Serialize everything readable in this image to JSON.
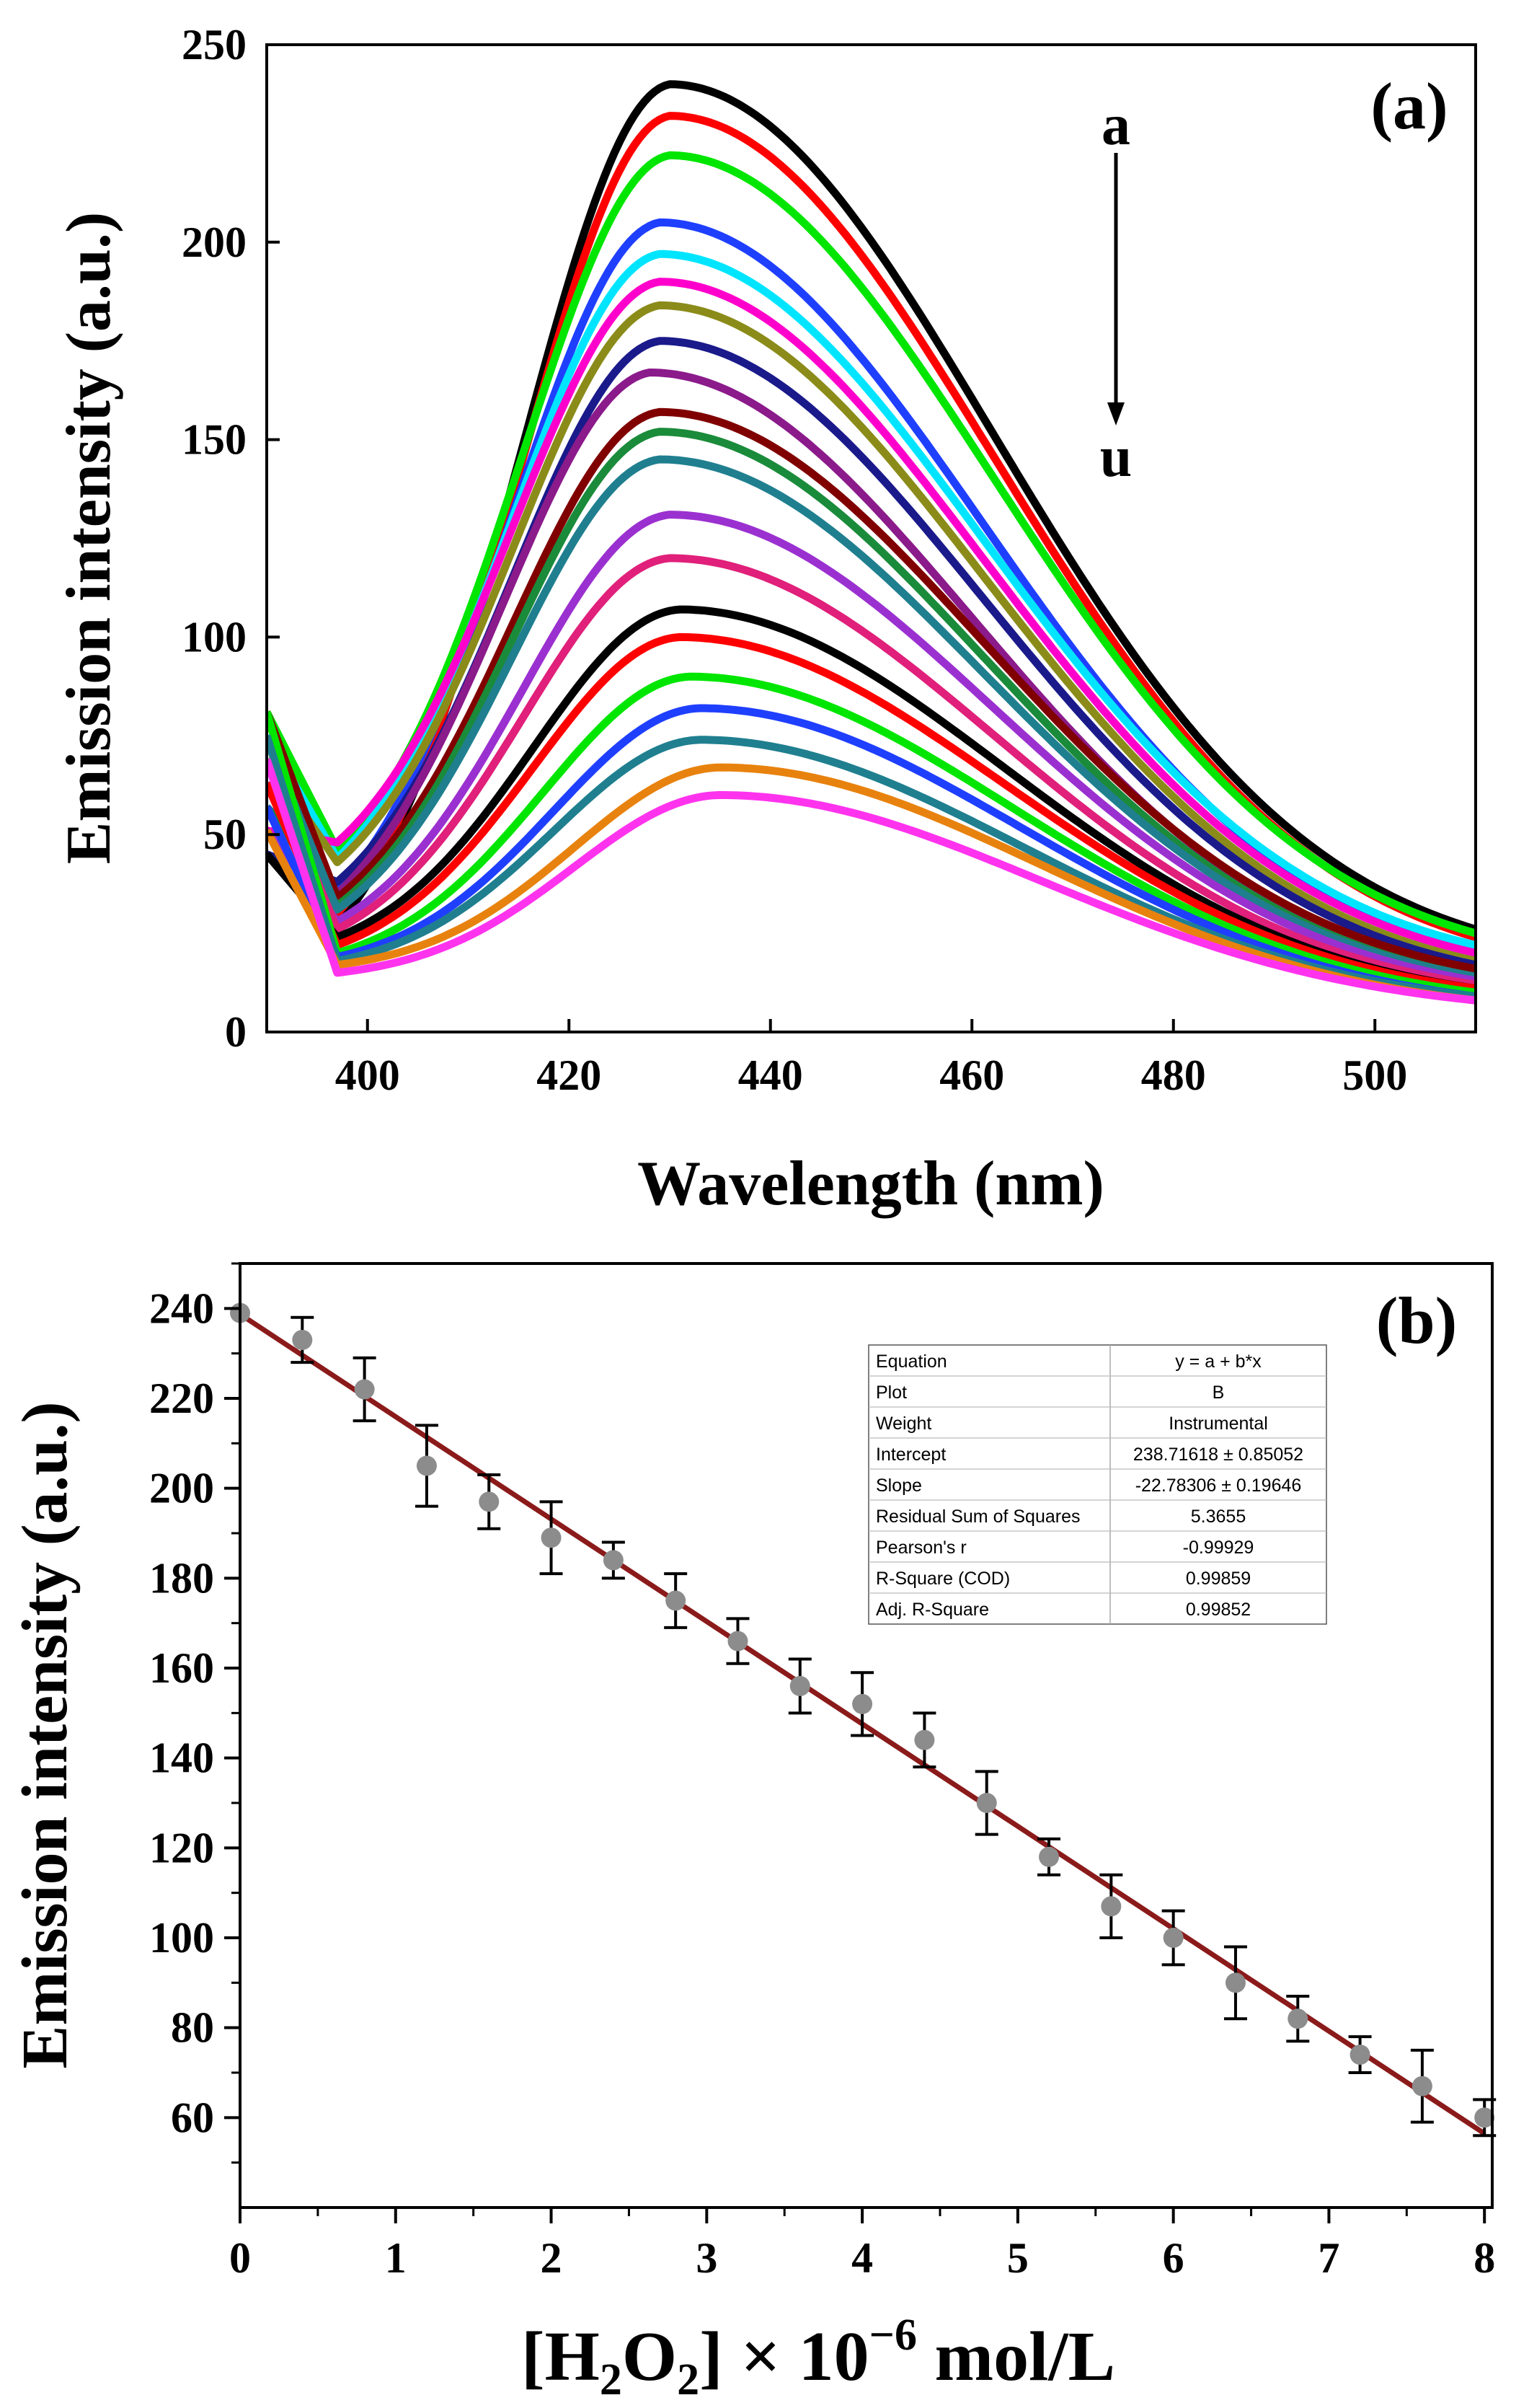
{
  "colors": {
    "fit_line": "#8B1A1A",
    "marker": "#8c8c8c",
    "errorbar": "#000000"
  },
  "chart_data": [
    {
      "panel": "(a)",
      "type": "line",
      "xlabel": "Wavelength (nm)",
      "ylabel": "Emission intensity (a.u.)",
      "xlim": [
        390,
        510
      ],
      "ylim": [
        0,
        250
      ],
      "xticks": [
        400,
        420,
        440,
        460,
        480,
        500
      ],
      "yticks": [
        0,
        50,
        100,
        150,
        200,
        250
      ],
      "grid": false,
      "annotation": {
        "top": "a",
        "bottom": "u"
      },
      "series": [
        {
          "color": "#000000",
          "peak_x": 430,
          "peak": 240,
          "dip": 27,
          "end": 26
        },
        {
          "color": "#ff0000",
          "peak_x": 430,
          "peak": 232,
          "dip": 30,
          "end": 24
        },
        {
          "color": "#00e600",
          "peak_x": 430,
          "peak": 222,
          "dip": 46,
          "end": 25
        },
        {
          "color": "#1f3fff",
          "peak_x": 429,
          "peak": 205,
          "dip": 36,
          "end": 20
        },
        {
          "color": "#00e5ff",
          "peak_x": 429,
          "peak": 197,
          "dip": 44,
          "end": 22
        },
        {
          "color": "#ff00cc",
          "peak_x": 429,
          "peak": 190,
          "dip": 48,
          "end": 20
        },
        {
          "color": "#8b8b1a",
          "peak_x": 429,
          "peak": 184,
          "dip": 43,
          "end": 18
        },
        {
          "color": "#1a1a8b",
          "peak_x": 429,
          "peak": 175,
          "dip": 38,
          "end": 17
        },
        {
          "color": "#8b1a8b",
          "peak_x": 428,
          "peak": 167,
          "dip": 35,
          "end": 15
        },
        {
          "color": "#800000",
          "peak_x": 429,
          "peak": 157,
          "dip": 34,
          "end": 16
        },
        {
          "color": "#1a8b3a",
          "peak_x": 429,
          "peak": 152,
          "dip": 32,
          "end": 14
        },
        {
          "color": "#1f7f8f",
          "peak_x": 429,
          "peak": 145,
          "dip": 31,
          "end": 14
        },
        {
          "color": "#9b30d0",
          "peak_x": 430,
          "peak": 131,
          "dip": 28,
          "end": 13
        },
        {
          "color": "#e0207a",
          "peak_x": 430,
          "peak": 120,
          "dip": 26,
          "end": 12
        },
        {
          "color": "#000000",
          "peak_x": 431,
          "peak": 107,
          "dip": 24,
          "end": 11
        },
        {
          "color": "#ff0000",
          "peak_x": 431,
          "peak": 100,
          "dip": 22,
          "end": 11
        },
        {
          "color": "#00e600",
          "peak_x": 432,
          "peak": 90,
          "dip": 20,
          "end": 10
        },
        {
          "color": "#1f3fff",
          "peak_x": 433,
          "peak": 82,
          "dip": 19,
          "end": 9
        },
        {
          "color": "#1f7f8f",
          "peak_x": 433,
          "peak": 74,
          "dip": 18,
          "end": 9
        },
        {
          "color": "#e8820e",
          "peak_x": 435,
          "peak": 67,
          "dip": 17,
          "end": 8
        },
        {
          "color": "#ff33ee",
          "peak_x": 435,
          "peak": 60,
          "dip": 15,
          "end": 8
        }
      ]
    },
    {
      "panel": "(b)",
      "type": "scatter",
      "xlabel_parts": {
        "open": "[H",
        "sub1": "2",
        "mid": "O",
        "sub2": "2",
        "close": "] × 10",
        "exp": "−6",
        "unit": " mol/L"
      },
      "ylabel": "Emission intensity (a.u.)",
      "xlim": [
        0,
        8.05
      ],
      "ylim": [
        40,
        250
      ],
      "xticks": [
        0,
        1,
        2,
        3,
        4,
        5,
        6,
        7,
        8
      ],
      "yticks": [
        60,
        80,
        100,
        120,
        140,
        160,
        180,
        200,
        220,
        240
      ],
      "grid": false,
      "points": [
        {
          "x": 0,
          "y": 239,
          "err": 0
        },
        {
          "x": 0.4,
          "y": 233,
          "err": 5
        },
        {
          "x": 0.8,
          "y": 222,
          "err": 7
        },
        {
          "x": 1.2,
          "y": 205,
          "err": 9
        },
        {
          "x": 1.6,
          "y": 197,
          "err": 6
        },
        {
          "x": 2.0,
          "y": 189,
          "err": 8
        },
        {
          "x": 2.4,
          "y": 184,
          "err": 4
        },
        {
          "x": 2.8,
          "y": 175,
          "err": 6
        },
        {
          "x": 3.2,
          "y": 166,
          "err": 5
        },
        {
          "x": 3.6,
          "y": 156,
          "err": 6
        },
        {
          "x": 4.0,
          "y": 152,
          "err": 7
        },
        {
          "x": 4.4,
          "y": 144,
          "err": 6
        },
        {
          "x": 4.8,
          "y": 130,
          "err": 7
        },
        {
          "x": 5.2,
          "y": 118,
          "err": 4
        },
        {
          "x": 5.6,
          "y": 107,
          "err": 7
        },
        {
          "x": 6.0,
          "y": 100,
          "err": 6
        },
        {
          "x": 6.4,
          "y": 90,
          "err": 8
        },
        {
          "x": 6.8,
          "y": 82,
          "err": 5
        },
        {
          "x": 7.2,
          "y": 74,
          "err": 4
        },
        {
          "x": 7.6,
          "y": 67,
          "err": 8
        },
        {
          "x": 8.0,
          "y": 60,
          "err": 4
        }
      ],
      "fit": {
        "intercept": 238.71618,
        "slope": -22.78306,
        "x_range": [
          0,
          8
        ]
      },
      "fit_table": [
        [
          "Equation",
          "y = a + b*x"
        ],
        [
          "Plot",
          "B"
        ],
        [
          "Weight",
          "Instrumental"
        ],
        [
          "Intercept",
          "238.71618 ± 0.85052"
        ],
        [
          "Slope",
          "-22.78306 ± 0.19646"
        ],
        [
          "Residual Sum of Squares",
          "5.3655"
        ],
        [
          "Pearson's r",
          "-0.99929"
        ],
        [
          "R-Square (COD)",
          "0.99859"
        ],
        [
          "Adj. R-Square",
          "0.99852"
        ]
      ]
    }
  ]
}
